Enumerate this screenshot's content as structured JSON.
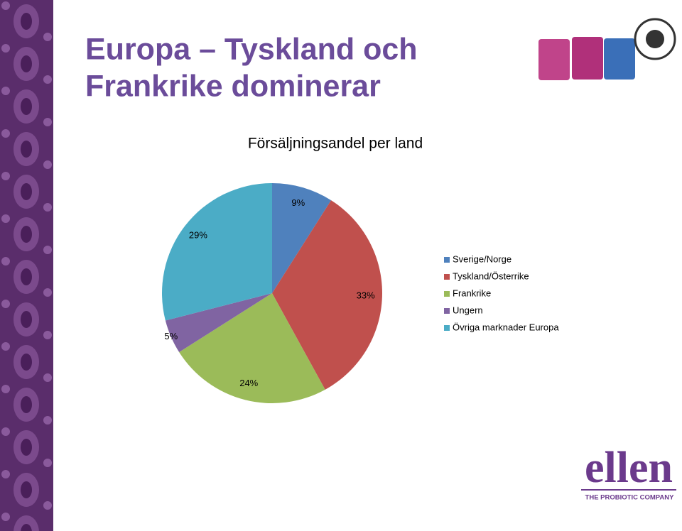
{
  "slide": {
    "title_lines": [
      "Europa – Tyskland och",
      "Frankrike dominerar"
    ]
  },
  "logo": {
    "brand": "ellen",
    "tagline": "THE PROBIOTIC COMPANY"
  },
  "chart_data": {
    "type": "pie",
    "title": "Försäljningsandel per land",
    "categories": [
      "Sverige/Norge",
      "Tyskland/Österrike",
      "Frankrike",
      "Ungern",
      "Övriga marknader Europa"
    ],
    "values": [
      9,
      33,
      24,
      5,
      29
    ],
    "value_labels": [
      "9%",
      "33%",
      "24%",
      "5%",
      "29%"
    ],
    "colors": [
      "#4f81bd",
      "#c0504d",
      "#9bbb59",
      "#8064a2",
      "#4bacc6"
    ],
    "legend": "right"
  }
}
